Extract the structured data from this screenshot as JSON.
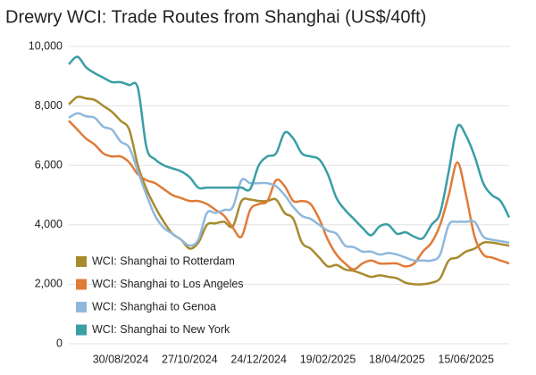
{
  "chart_data": {
    "type": "line",
    "title": "Drewry WCI: Trade Routes from Shanghai (US$/40ft)",
    "categories": [
      null,
      null,
      null,
      null,
      null,
      null,
      "30/08/2024",
      null,
      null,
      null,
      null,
      null,
      null,
      null,
      "27/10/2024",
      null,
      null,
      null,
      null,
      null,
      null,
      null,
      "24/12/2024",
      null,
      null,
      null,
      null,
      null,
      null,
      null,
      "19/02/2025",
      null,
      null,
      null,
      null,
      null,
      null,
      null,
      "18/04/2025",
      null,
      null,
      null,
      null,
      null,
      null,
      null,
      "15/06/2025",
      null,
      null,
      null,
      null,
      null
    ],
    "series": [
      {
        "name": "WCI: Shanghai to Rotterdam",
        "color": "#a88b2f",
        "values": [
          8050,
          8300,
          8250,
          8200,
          8000,
          7800,
          7500,
          7200,
          6000,
          5200,
          4600,
          4100,
          3700,
          3500,
          3200,
          3400,
          4000,
          4050,
          4100,
          3950,
          4800,
          4850,
          4800,
          4800,
          4850,
          4400,
          4200,
          3400,
          3200,
          2900,
          2600,
          2650,
          2500,
          2450,
          2350,
          2250,
          2300,
          2250,
          2200,
          2050,
          2000,
          2000,
          2050,
          2200,
          2800,
          2900,
          3100,
          3200,
          3400,
          3400,
          3350,
          3300
        ]
      },
      {
        "name": "WCI: Shanghai to Los Angeles",
        "color": "#e07b39",
        "values": [
          7500,
          7200,
          6900,
          6700,
          6400,
          6300,
          6300,
          6100,
          5700,
          5500,
          5400,
          5200,
          5000,
          4900,
          4800,
          4800,
          4700,
          4500,
          4300,
          3900,
          3600,
          4500,
          4700,
          4800,
          5500,
          5300,
          4800,
          4800,
          4700,
          4200,
          3500,
          3000,
          2700,
          2500,
          2700,
          2800,
          2700,
          2700,
          2700,
          2600,
          2700,
          3100,
          3400,
          4000,
          5000,
          6100,
          5000,
          3600,
          3000,
          2900,
          2800,
          2700
        ]
      },
      {
        "name": "WCI: Shanghai to Genoa",
        "color": "#8fb8dc",
        "values": [
          7600,
          7750,
          7650,
          7600,
          7300,
          7200,
          6800,
          6600,
          5800,
          5000,
          4300,
          3900,
          3700,
          3500,
          3300,
          3500,
          4400,
          4400,
          4500,
          4600,
          5500,
          5400,
          5400,
          5400,
          5300,
          5000,
          4600,
          4300,
          4200,
          4000,
          3800,
          3700,
          3300,
          3250,
          3100,
          3100,
          3000,
          3050,
          3000,
          2900,
          2800,
          2800,
          2800,
          3000,
          4000,
          4100,
          4100,
          4100,
          3600,
          3500,
          3450,
          3400
        ]
      },
      {
        "name": "WCI: Shanghai to New York",
        "color": "#3a9ea5",
        "values": [
          9400,
          9650,
          9300,
          9100,
          8950,
          8800,
          8800,
          8700,
          8600,
          6600,
          6200,
          6000,
          5900,
          5800,
          5600,
          5250,
          5250,
          5250,
          5250,
          5250,
          5250,
          5200,
          6000,
          6300,
          6400,
          7100,
          6900,
          6400,
          6300,
          6200,
          5700,
          4900,
          4500,
          4200,
          3900,
          3650,
          3950,
          4000,
          3700,
          3750,
          3600,
          3550,
          4000,
          4400,
          5800,
          7300,
          7000,
          6300,
          5400,
          5000,
          4800,
          4250
        ]
      }
    ],
    "ylim": [
      0,
      10000
    ],
    "yticks": [
      0,
      {
        "value": 2000,
        "label": "2,000"
      },
      {
        "value": 4000,
        "label": "4,000"
      },
      {
        "value": 6000,
        "label": "6,000"
      },
      {
        "value": 8000,
        "label": "8,000"
      },
      {
        "value": 10000,
        "label": "10,000"
      }
    ],
    "grid": true,
    "legend": "lower-left"
  }
}
